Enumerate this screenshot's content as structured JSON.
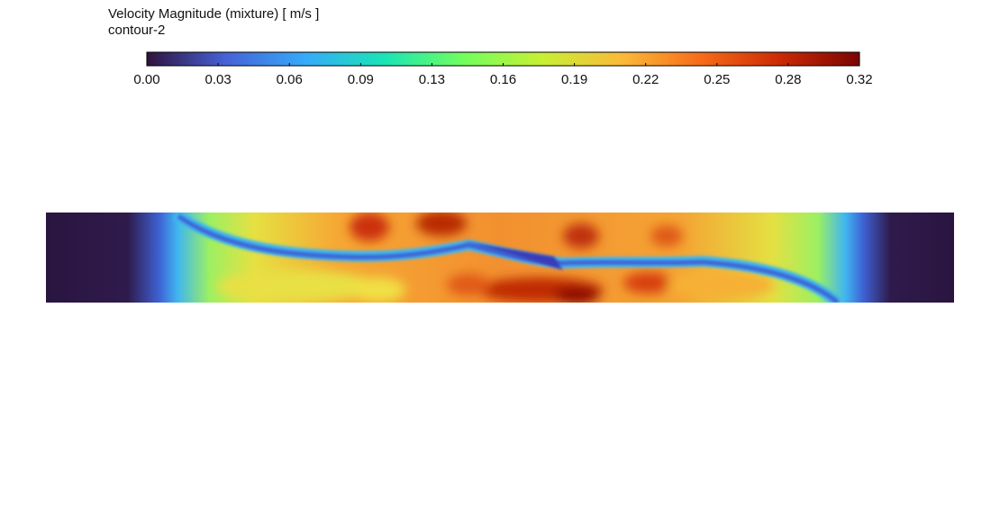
{
  "legend": {
    "title": "Velocity Magnitude (mixture)  [ m/s ]",
    "subtitle": "contour-2",
    "range": [
      0,
      0.316
    ],
    "ticks": [
      {
        "value": 0,
        "label": "0.00"
      },
      {
        "value": 0.0316,
        "label": "0.03"
      },
      {
        "value": 0.0632,
        "label": "0.06"
      },
      {
        "value": 0.0948,
        "label": "0.09"
      },
      {
        "value": 0.1264,
        "label": "0.13"
      },
      {
        "value": 0.158,
        "label": "0.16"
      },
      {
        "value": 0.1896,
        "label": "0.19"
      },
      {
        "value": 0.2212,
        "label": "0.22"
      },
      {
        "value": 0.2528,
        "label": "0.25"
      },
      {
        "value": 0.2844,
        "label": "0.28"
      },
      {
        "value": 0.316,
        "label": "0.32"
      }
    ],
    "colormap": [
      "#30123b",
      "#4662d7",
      "#36aaf9",
      "#1ae4b6",
      "#72fe5e",
      "#c8ef34",
      "#faba39",
      "#f66b19",
      "#ca2a04",
      "#7a0403"
    ]
  }
}
